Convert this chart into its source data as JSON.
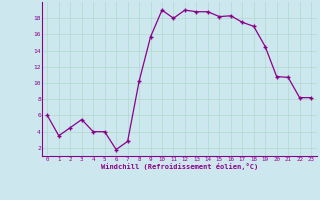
{
  "x": [
    0,
    1,
    2,
    3,
    4,
    5,
    6,
    7,
    8,
    9,
    10,
    11,
    12,
    13,
    14,
    15,
    16,
    17,
    18,
    19,
    20,
    21,
    22,
    23
  ],
  "y": [
    6,
    3.5,
    4.5,
    5.5,
    4,
    4,
    1.8,
    2.8,
    10.2,
    15.7,
    19.0,
    18.0,
    19.0,
    18.8,
    18.8,
    18.2,
    18.3,
    17.5,
    17.0,
    14.5,
    10.8,
    10.7,
    8.2,
    8.2
  ],
  "line_color": "#8B008B",
  "marker_color": "#8B008B",
  "bg_color": "#cce8ee",
  "grid_color": "#b0d8cc",
  "xlabel": "Windchill (Refroidissement éolien,°C)",
  "ylabel_ticks": [
    2,
    4,
    6,
    8,
    10,
    12,
    14,
    16,
    18
  ],
  "xlim": [
    -0.5,
    23.5
  ],
  "ylim": [
    1.0,
    20.0
  ]
}
